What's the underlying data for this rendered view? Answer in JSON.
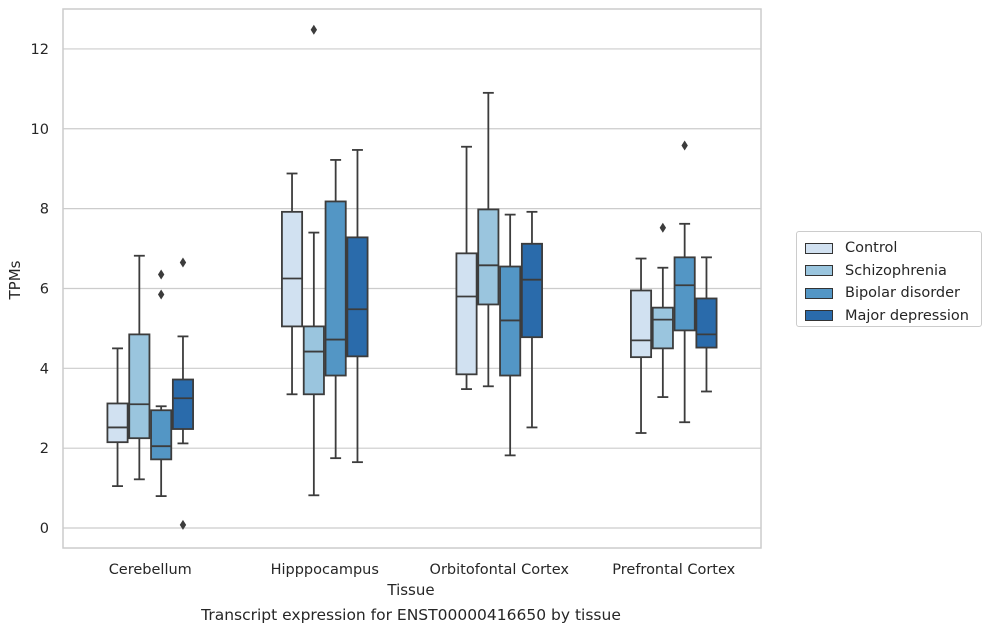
{
  "chart_data": {
    "type": "box",
    "xlabel": "Tissue",
    "ylabel": "TPMs",
    "ylim": [
      -0.5,
      13
    ],
    "yticks": [
      0,
      2,
      4,
      6,
      8,
      10,
      12
    ],
    "grid": "horizontal",
    "legend_position": "right",
    "categories": [
      "Cerebellum",
      "Hipppocampus",
      "Orbitofontal Cortex",
      "Prefrontal Cortex"
    ],
    "series": [
      {
        "name": "Control",
        "color": "#d1e1f1",
        "boxes": [
          {
            "whislo": 1.05,
            "q1": 2.15,
            "med": 2.52,
            "q3": 3.12,
            "whishi": 4.5,
            "fliers": []
          },
          {
            "whislo": 3.35,
            "q1": 5.05,
            "med": 6.25,
            "q3": 7.92,
            "whishi": 8.88,
            "fliers": []
          },
          {
            "whislo": 3.48,
            "q1": 3.85,
            "med": 5.8,
            "q3": 6.88,
            "whishi": 9.55,
            "fliers": []
          },
          {
            "whislo": 2.38,
            "q1": 4.28,
            "med": 4.7,
            "q3": 5.95,
            "whishi": 6.75,
            "fliers": []
          }
        ]
      },
      {
        "name": "Schizophrenia",
        "color": "#9ac5de",
        "boxes": [
          {
            "whislo": 1.22,
            "q1": 2.25,
            "med": 3.1,
            "q3": 4.85,
            "whishi": 6.82,
            "fliers": []
          },
          {
            "whislo": 0.82,
            "q1": 3.35,
            "med": 4.42,
            "q3": 5.05,
            "whishi": 7.4,
            "fliers": [
              12.48
            ]
          },
          {
            "whislo": 3.55,
            "q1": 5.6,
            "med": 6.58,
            "q3": 7.98,
            "whishi": 10.9,
            "fliers": []
          },
          {
            "whislo": 3.28,
            "q1": 4.5,
            "med": 5.22,
            "q3": 5.52,
            "whishi": 6.52,
            "fliers": [
              7.52
            ]
          }
        ]
      },
      {
        "name": "Bipolar disorder",
        "color": "#5396c5",
        "boxes": [
          {
            "whislo": 0.8,
            "q1": 1.72,
            "med": 2.05,
            "q3": 2.95,
            "whishi": 3.05,
            "fliers": [
              6.35,
              5.85
            ]
          },
          {
            "whislo": 1.75,
            "q1": 3.82,
            "med": 4.72,
            "q3": 8.18,
            "whishi": 9.22,
            "fliers": []
          },
          {
            "whislo": 1.82,
            "q1": 3.82,
            "med": 5.2,
            "q3": 6.55,
            "whishi": 7.85,
            "fliers": []
          },
          {
            "whislo": 2.65,
            "q1": 4.95,
            "med": 6.08,
            "q3": 6.78,
            "whishi": 7.62,
            "fliers": [
              9.58
            ]
          }
        ]
      },
      {
        "name": "Major depression",
        "color": "#2a6bab",
        "boxes": [
          {
            "whislo": 2.12,
            "q1": 2.48,
            "med": 3.25,
            "q3": 3.72,
            "whishi": 4.8,
            "fliers": [
              6.65,
              0.08
            ]
          },
          {
            "whislo": 1.65,
            "q1": 4.3,
            "med": 5.48,
            "q3": 7.28,
            "whishi": 9.47,
            "fliers": []
          },
          {
            "whislo": 2.52,
            "q1": 4.78,
            "med": 6.22,
            "q3": 7.12,
            "whishi": 7.92,
            "fliers": []
          },
          {
            "whislo": 3.42,
            "q1": 4.52,
            "med": 4.85,
            "q3": 5.75,
            "whishi": 6.78,
            "fliers": []
          }
        ]
      }
    ]
  },
  "caption": "Transcript expression for ENST00000416650 by tissue"
}
